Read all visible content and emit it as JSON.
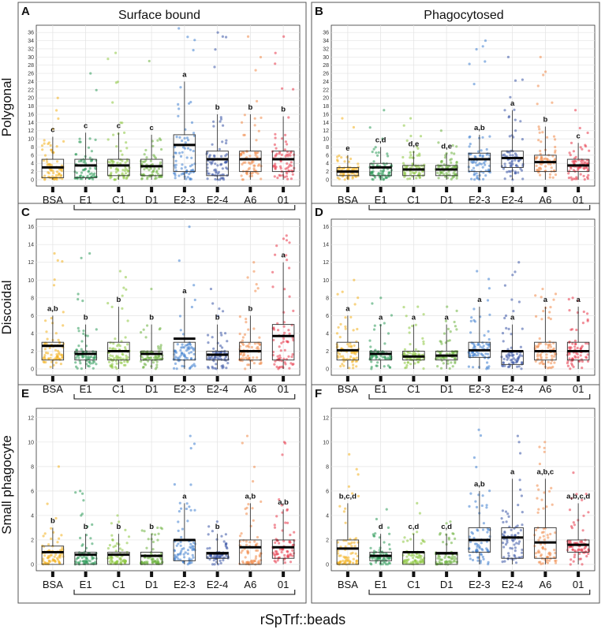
{
  "figure": {
    "x_title": "rSpTrf::beads",
    "col_titles": [
      "Surface bound",
      "Phagocytosed"
    ],
    "row_titles": [
      "Polygonal",
      "Discoidal",
      "Small phagocyte"
    ]
  },
  "chart_data": [
    {
      "panel": "A",
      "type": "box",
      "row": "Polygonal",
      "column": "Surface bound",
      "categories": [
        "BSA",
        "E1",
        "C1",
        "D1",
        "E2-3",
        "E2-4",
        "A6",
        "01"
      ],
      "colors": [
        "#f2b01e",
        "#2e9a5a",
        "#8cc63f",
        "#6db33f",
        "#3f7fd0",
        "#3a55a5",
        "#f08a4b",
        "#e8394a"
      ],
      "ylim": [
        0,
        37
      ],
      "yticks": [
        0,
        2,
        4,
        6,
        8,
        10,
        12,
        14,
        16,
        18,
        20,
        22,
        24,
        26,
        28,
        30,
        32,
        34,
        36
      ],
      "medians": [
        3,
        3.5,
        3.5,
        3.3,
        8.5,
        5,
        5,
        5
      ],
      "q1": [
        0.5,
        0.5,
        1,
        1,
        2,
        1,
        2,
        2
      ],
      "q3": [
        5,
        5,
        5,
        5,
        11,
        7,
        7,
        7
      ],
      "whisker_low": [
        0,
        0,
        0,
        0,
        0,
        0,
        0,
        0
      ],
      "whisker_high": [
        10.5,
        11.5,
        11.5,
        11,
        24,
        16,
        16,
        15.5
      ],
      "point_max": [
        20,
        26,
        31,
        29,
        37,
        36,
        35,
        35
      ],
      "letters": [
        "c",
        "c",
        "c",
        "c",
        "a",
        "b",
        "b",
        "b"
      ]
    },
    {
      "panel": "B",
      "type": "box",
      "row": "Polygonal",
      "column": "Phagocytosed",
      "categories": [
        "BSA",
        "E1",
        "C1",
        "D1",
        "E2-3",
        "E2-4",
        "A6",
        "01"
      ],
      "colors": [
        "#f2b01e",
        "#2e9a5a",
        "#8cc63f",
        "#6db33f",
        "#3f7fd0",
        "#3a55a5",
        "#f08a4b",
        "#e8394a"
      ],
      "ylim": [
        0,
        37
      ],
      "yticks": [
        0,
        2,
        4,
        6,
        8,
        10,
        12,
        14,
        16,
        18,
        20,
        22,
        24,
        26,
        28,
        30,
        32,
        34,
        36
      ],
      "medians": [
        2,
        3,
        2.5,
        2.5,
        5,
        5.3,
        4.3,
        3.5
      ],
      "q1": [
        1,
        1,
        1,
        1,
        2,
        3,
        2,
        2
      ],
      "q3": [
        3,
        4,
        3.5,
        3.5,
        6.5,
        7,
        6,
        5
      ],
      "whisker_low": [
        0,
        0,
        0,
        0,
        0,
        0,
        0,
        0
      ],
      "whisker_high": [
        6,
        8,
        7,
        6.5,
        11,
        17,
        13,
        9
      ],
      "point_max": [
        15,
        17,
        15,
        12,
        34,
        30,
        30,
        17
      ],
      "letters": [
        "e",
        "c,d",
        "d,e",
        "d,e",
        "a,b",
        "a",
        "b",
        "c"
      ]
    },
    {
      "panel": "C",
      "type": "box",
      "row": "Discoidal",
      "column": "Surface bound",
      "categories": [
        "BSA",
        "E1",
        "C1",
        "D1",
        "E2-3",
        "E2-4",
        "A6",
        "01"
      ],
      "colors": [
        "#f2b01e",
        "#2e9a5a",
        "#8cc63f",
        "#6db33f",
        "#3f7fd0",
        "#3a55a5",
        "#f08a4b",
        "#e8394a"
      ],
      "ylim": [
        0,
        16.5
      ],
      "yticks": [
        0,
        2,
        4,
        6,
        8,
        10,
        12,
        14,
        16
      ],
      "medians": [
        2.6,
        1.7,
        2,
        1.7,
        3.4,
        1.6,
        2,
        3.7
      ],
      "q1": [
        1,
        1,
        1,
        1,
        1,
        1,
        1,
        1
      ],
      "q3": [
        3,
        2,
        3,
        2,
        3,
        2,
        3,
        5
      ],
      "whisker_low": [
        0,
        0,
        0,
        0,
        0,
        0,
        0,
        0
      ],
      "whisker_high": [
        6,
        5,
        7,
        5,
        8,
        5,
        6,
        12
      ],
      "point_max": [
        13,
        13,
        11,
        9,
        16,
        9,
        12,
        15
      ],
      "letters": [
        "a,b",
        "b",
        "b",
        "b",
        "a",
        "b",
        "b",
        "a"
      ]
    },
    {
      "panel": "D",
      "type": "box",
      "row": "Discoidal",
      "column": "Phagocytosed",
      "categories": [
        "BSA",
        "E1",
        "C1",
        "D1",
        "E2-3",
        "E2-4",
        "A6",
        "01"
      ],
      "colors": [
        "#f2b01e",
        "#2e9a5a",
        "#8cc63f",
        "#6db33f",
        "#3f7fd0",
        "#3a55a5",
        "#f08a4b",
        "#e8394a"
      ],
      "ylim": [
        0,
        16.5
      ],
      "yticks": [
        0,
        2,
        4,
        6,
        8,
        10,
        12,
        14,
        16
      ],
      "medians": [
        2.1,
        1.7,
        1.4,
        1.5,
        2.1,
        2,
        2,
        2
      ],
      "q1": [
        1,
        1,
        1,
        1,
        1.3,
        0.5,
        1,
        1
      ],
      "q3": [
        3,
        2,
        2,
        2,
        3,
        2,
        3,
        3
      ],
      "whisker_low": [
        0,
        0,
        0,
        0,
        0,
        0,
        0,
        0
      ],
      "whisker_high": [
        6,
        5,
        5,
        5,
        7,
        5,
        7,
        7
      ],
      "point_max": [
        10,
        8,
        7,
        7,
        11,
        12,
        9,
        8
      ],
      "letters": [
        "a",
        "a",
        "a",
        "a",
        "a",
        "a",
        "a",
        "a"
      ]
    },
    {
      "panel": "E",
      "type": "box",
      "row": "Small phagocyte",
      "column": "Surface bound",
      "categories": [
        "BSA",
        "E1",
        "C1",
        "D1",
        "E2-3",
        "E2-4",
        "A6",
        "01"
      ],
      "colors": [
        "#f2b01e",
        "#2e9a5a",
        "#8cc63f",
        "#6db33f",
        "#3f7fd0",
        "#3a55a5",
        "#f08a4b",
        "#e8394a"
      ],
      "ylim": [
        0,
        12.5
      ],
      "yticks": [
        0,
        2,
        4,
        6,
        8,
        10,
        12
      ],
      "medians": [
        1,
        0.8,
        0.8,
        0.7,
        2,
        0.9,
        1.4,
        1.4
      ],
      "q1": [
        0,
        0,
        0,
        0,
        0.3,
        0.5,
        0,
        0.5
      ],
      "q3": [
        1.5,
        1,
        1,
        1,
        2,
        1,
        2,
        2
      ],
      "whisker_low": [
        0,
        0,
        0,
        0,
        0,
        0,
        0,
        0
      ],
      "whisker_high": [
        3,
        2.5,
        2.5,
        2.5,
        5,
        2.5,
        5,
        4.5
      ],
      "point_max": [
        8,
        6,
        4,
        3,
        10.5,
        3.5,
        10.5,
        10
      ],
      "letters": [
        "b",
        "b",
        "b",
        "b",
        "a",
        "b",
        "a,b",
        "a,b"
      ]
    },
    {
      "panel": "F",
      "type": "box",
      "row": "Small phagocyte",
      "column": "Phagocytosed",
      "categories": [
        "BSA",
        "E1",
        "C1",
        "D1",
        "E2-3",
        "E2-4",
        "A6",
        "01"
      ],
      "colors": [
        "#f2b01e",
        "#2e9a5a",
        "#8cc63f",
        "#6db33f",
        "#3f7fd0",
        "#3a55a5",
        "#f08a4b",
        "#e8394a"
      ],
      "ylim": [
        0,
        12.5
      ],
      "yticks": [
        0,
        2,
        4,
        6,
        8,
        10,
        12
      ],
      "medians": [
        1.3,
        0.7,
        1,
        0.9,
        2,
        2.2,
        1.8,
        1.6
      ],
      "q1": [
        0,
        0.3,
        0,
        0,
        1,
        0.5,
        0.5,
        1
      ],
      "q3": [
        2,
        1,
        1,
        1,
        3,
        3,
        3,
        2
      ],
      "whisker_low": [
        0,
        0,
        0,
        0,
        0,
        0,
        0,
        0
      ],
      "whisker_high": [
        5,
        2.5,
        2.5,
        2.5,
        6,
        7,
        7,
        5
      ],
      "point_max": [
        9,
        4.5,
        5,
        3.5,
        11,
        10.5,
        10,
        7.5
      ],
      "letters": [
        "b,c,d",
        "d",
        "c,d",
        "c,d",
        "a,b",
        "a",
        "a,b,c",
        "a,b,c,d"
      ]
    }
  ]
}
